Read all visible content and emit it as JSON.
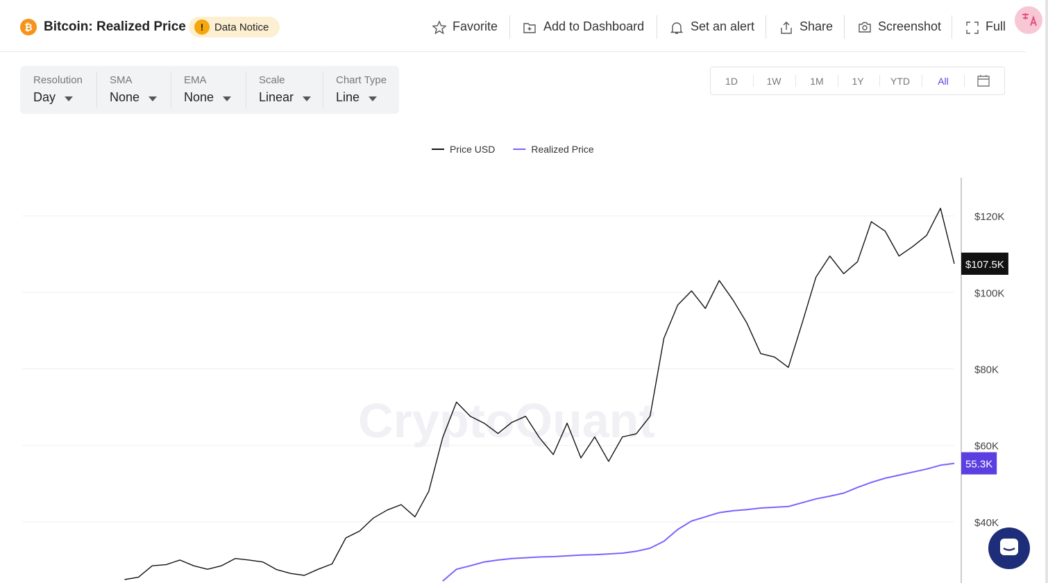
{
  "header": {
    "title": "Bitcoin: Realized Price",
    "notice": "Data Notice",
    "actions": [
      "Favorite",
      "Add to Dashboard",
      "Set an alert",
      "Share",
      "Screenshot",
      "Full"
    ]
  },
  "controls": [
    {
      "label": "Resolution",
      "value": "Day"
    },
    {
      "label": "SMA",
      "value": "None"
    },
    {
      "label": "EMA",
      "value": "None"
    },
    {
      "label": "Scale",
      "value": "Linear"
    },
    {
      "label": "Chart Type",
      "value": "Line"
    }
  ],
  "ranges": {
    "items": [
      "1D",
      "1W",
      "1M",
      "1Y",
      "YTD",
      "All"
    ],
    "active": 5
  },
  "watermark": "CryptoQuant",
  "chart_data": {
    "type": "line",
    "legend": "top",
    "ylim": [
      24000,
      130000
    ],
    "yticks": [
      {
        "value": 40000,
        "label": "$40K"
      },
      {
        "value": 60000,
        "label": "$60K"
      },
      {
        "value": 80000,
        "label": "$80K"
      },
      {
        "value": 100000,
        "label": "$100K"
      },
      {
        "value": 120000,
        "label": "$120K"
      }
    ],
    "grid": true,
    "series": [
      {
        "name": "Price USD",
        "color": "#111111",
        "end_label": "$107.5K",
        "values": [
          null,
          null,
          null,
          null,
          null,
          null,
          null,
          24900,
          25500,
          28500,
          28800,
          30000,
          28500,
          27600,
          28500,
          30400,
          30000,
          29500,
          27500,
          26500,
          26000,
          27600,
          29000,
          35800,
          37600,
          41000,
          43100,
          44500,
          41300,
          48000,
          62000,
          71300,
          67600,
          65800,
          63100,
          66000,
          67600,
          62000,
          57600,
          65800,
          56700,
          62200,
          55800,
          62200,
          63000,
          67600,
          88000,
          96700,
          100400,
          95800,
          103100,
          98000,
          92000,
          84000,
          83100,
          80400,
          92000,
          104000,
          109500,
          104900,
          108000,
          118500,
          116000,
          109500,
          112000,
          114900,
          122000,
          107500
        ]
      },
      {
        "name": "Realized Price",
        "color": "#7b61ff",
        "end_label": "55.3K",
        "values": [
          null,
          null,
          null,
          null,
          null,
          null,
          null,
          null,
          null,
          null,
          null,
          null,
          null,
          null,
          null,
          null,
          null,
          null,
          null,
          null,
          null,
          null,
          null,
          null,
          null,
          null,
          null,
          null,
          null,
          null,
          24500,
          27600,
          28500,
          29500,
          30000,
          30400,
          30600,
          30800,
          30900,
          31100,
          31300,
          31400,
          31600,
          31800,
          32300,
          33100,
          34900,
          38000,
          40200,
          41300,
          42400,
          42900,
          43200,
          43600,
          43800,
          44000,
          45000,
          46000,
          46700,
          47500,
          49000,
          50300,
          51400,
          52200,
          53000,
          53800,
          54800,
          55300
        ]
      }
    ]
  }
}
